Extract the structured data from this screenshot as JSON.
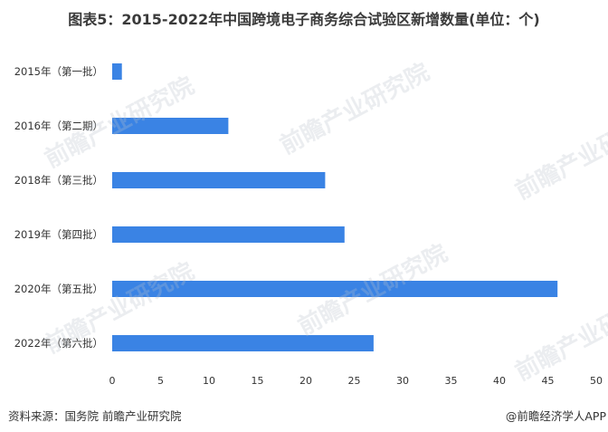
{
  "title": "图表5：2015-2022年中国跨境电子商务综合试验区新增数量(单位：个)",
  "source": "资料来源：国务院 前瞻产业研究院",
  "credit": "@前瞻经济学人APP",
  "watermark": "前瞻产业研究院",
  "chart_data": {
    "type": "bar",
    "orientation": "horizontal",
    "categories": [
      "2015年（第一批）",
      "2016年（第二期）",
      "2018年（第三批）",
      "2019年（第四批）",
      "2020年（第五批）",
      "2022年（第六批）"
    ],
    "values": [
      1,
      12,
      22,
      24,
      46,
      27
    ],
    "xlim": [
      0,
      50
    ],
    "xticks": [
      0,
      5,
      10,
      15,
      20,
      25,
      30,
      35,
      40,
      45,
      50
    ],
    "bar_color": "#3a83e4",
    "grid": false,
    "legend": "none"
  }
}
